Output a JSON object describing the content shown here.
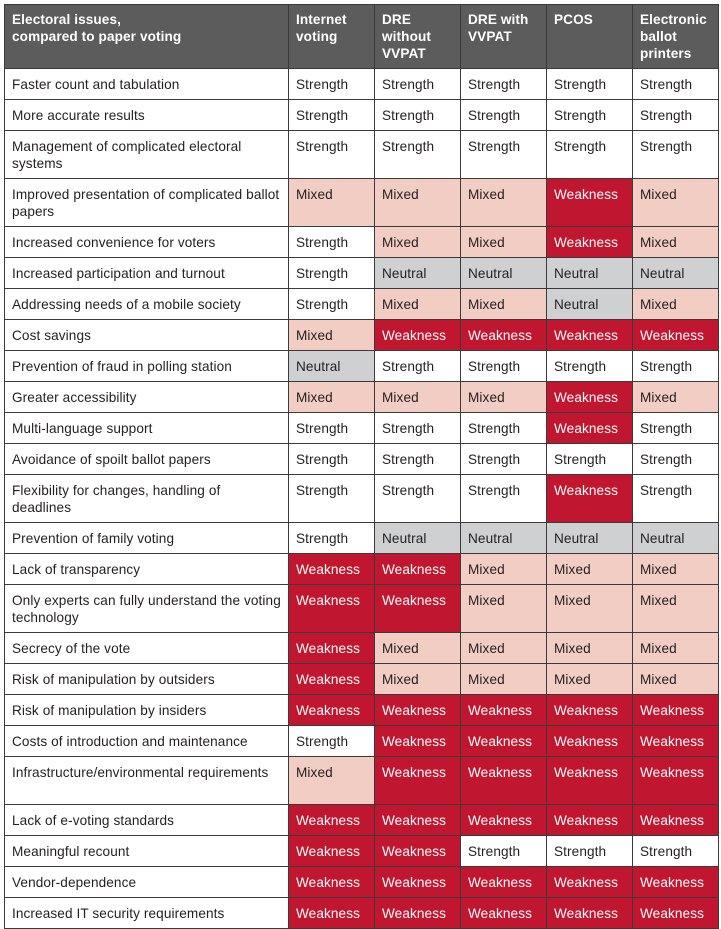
{
  "header": {
    "issue_label": "Electoral issues,\ncompared to paper voting",
    "columns": [
      "Internet voting",
      "DRE without VVPAT",
      "DRE with VVPAT",
      "PCOS",
      "Electronic ballot printers"
    ]
  },
  "colors": {
    "header_bg": "#5c5c5c",
    "strength": "#ffffff",
    "mixed": "#f2cdc4",
    "neutral": "#cfd0d2",
    "weakness": "#c0162f"
  },
  "rows": [
    {
      "issue": "Faster count and tabulation",
      "values": [
        "Strength",
        "Strength",
        "Strength",
        "Strength",
        "Strength"
      ]
    },
    {
      "issue": "More accurate results",
      "values": [
        "Strength",
        "Strength",
        "Strength",
        "Strength",
        "Strength"
      ]
    },
    {
      "issue": "Management of complicated electoral systems",
      "values": [
        "Strength",
        "Strength",
        "Strength",
        "Strength",
        "Strength"
      ]
    },
    {
      "issue": "Improved presentation of complicated ballot papers",
      "values": [
        "Mixed",
        "Mixed",
        "Mixed",
        "Weakness",
        "Mixed"
      ]
    },
    {
      "issue": "Increased convenience for voters",
      "values": [
        "Strength",
        "Mixed",
        "Mixed",
        "Weakness",
        "Mixed"
      ]
    },
    {
      "issue": "Increased participation and turnout",
      "values": [
        "Strength",
        "Neutral",
        "Neutral",
        "Neutral",
        "Neutral"
      ]
    },
    {
      "issue": "Addressing needs of a mobile society",
      "values": [
        "Strength",
        "Mixed",
        "Mixed",
        "Neutral",
        "Mixed"
      ]
    },
    {
      "issue": "Cost savings",
      "values": [
        "Mixed",
        "Weakness",
        "Weakness",
        "Weakness",
        "Weakness"
      ]
    },
    {
      "issue": "Prevention of fraud in polling station",
      "values": [
        "Neutral",
        "Strength",
        "Strength",
        "Strength",
        "Strength"
      ]
    },
    {
      "issue": "Greater accessibility",
      "values": [
        "Mixed",
        "Mixed",
        "Mixed",
        "Weakness",
        "Mixed"
      ]
    },
    {
      "issue": "Multi-language support",
      "values": [
        "Strength",
        "Strength",
        "Strength",
        "Weakness",
        "Strength"
      ]
    },
    {
      "issue": "Avoidance of spoilt ballot papers",
      "values": [
        "Strength",
        "Strength",
        "Strength",
        "Strength",
        "Strength"
      ]
    },
    {
      "issue": "Flexibility for changes, handling of deadlines",
      "values": [
        "Strength",
        "Strength",
        "Strength",
        "Weakness",
        "Strength"
      ]
    },
    {
      "issue": "Prevention of family voting",
      "values": [
        "Strength",
        "Neutral",
        "Neutral",
        "Neutral",
        "Neutral"
      ]
    },
    {
      "issue": "Lack of transparency",
      "values": [
        "Weakness",
        "Weakness",
        "Mixed",
        "Mixed",
        "Mixed"
      ]
    },
    {
      "issue": "Only experts can fully understand the voting technology",
      "values": [
        "Weakness",
        "Weakness",
        "Mixed",
        "Mixed",
        "Mixed"
      ]
    },
    {
      "issue": "Secrecy of the vote",
      "values": [
        "Weakness",
        "Mixed",
        "Mixed",
        "Mixed",
        "Mixed"
      ]
    },
    {
      "issue": "Risk of manipulation by outsiders",
      "values": [
        "Weakness",
        "Mixed",
        "Mixed",
        "Mixed",
        "Mixed"
      ]
    },
    {
      "issue": "Risk of manipulation by insiders",
      "values": [
        "Weakness",
        "Weakness",
        "Weakness",
        "Weakness",
        "Weakness"
      ]
    },
    {
      "issue": "Costs of introduction and maintenance",
      "values": [
        "Strength",
        "Weakness",
        "Weakness",
        "Weakness",
        "Weakness"
      ]
    },
    {
      "issue": "Infrastructure/environmental requirements",
      "values": [
        "Mixed",
        "Weakness",
        "Weakness",
        "Weakness",
        "Weakness"
      ]
    },
    {
      "issue": "Lack of e-voting standards",
      "values": [
        "Weakness",
        "Weakness",
        "Weakness",
        "Weakness",
        "Weakness"
      ]
    },
    {
      "issue": "Meaningful recount",
      "values": [
        "Weakness",
        "Weakness",
        "Strength",
        "Strength",
        "Strength"
      ]
    },
    {
      "issue": "Vendor-dependence",
      "values": [
        "Weakness",
        "Weakness",
        "Weakness",
        "Weakness",
        "Weakness"
      ]
    },
    {
      "issue": "Increased IT security requirements",
      "values": [
        "Weakness",
        "Weakness",
        "Weakness",
        "Weakness",
        "Weakness"
      ]
    }
  ]
}
